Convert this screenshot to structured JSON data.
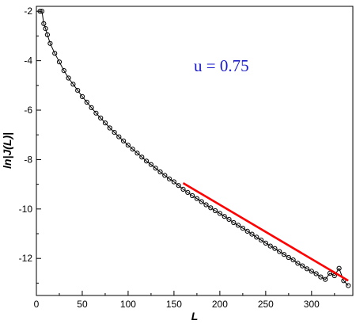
{
  "chart_data": {
    "type": "scatter",
    "title": "",
    "xlabel": "L",
    "ylabel": "ln|J(L)|",
    "xlim": [
      0,
      345
    ],
    "ylim": [
      -13.5,
      -1.8
    ],
    "xticks": [
      0,
      50,
      100,
      150,
      200,
      250,
      300
    ],
    "yticks": [
      -2,
      -4,
      -6,
      -8,
      -10,
      -12
    ],
    "grid": false,
    "legend": "none",
    "annotation": {
      "text": "u = 0.75",
      "color": "#1a1acc"
    },
    "series": [
      {
        "kind": "markers-with-line",
        "color": "#000000",
        "marker": "open-circle",
        "x": [
          4,
          6,
          8,
          10,
          12,
          15,
          20,
          25,
          30,
          35,
          40,
          45,
          50,
          55,
          60,
          65,
          70,
          75,
          80,
          85,
          90,
          95,
          100,
          105,
          110,
          115,
          120,
          125,
          130,
          135,
          140,
          145,
          150,
          155,
          160,
          165,
          170,
          175,
          180,
          185,
          190,
          195,
          200,
          205,
          210,
          215,
          220,
          225,
          230,
          235,
          240,
          245,
          250,
          255,
          260,
          265,
          270,
          275,
          280,
          285,
          290,
          295,
          300,
          305,
          310,
          315,
          320,
          325,
          330,
          335,
          340
        ],
        "y": [
          -2.0,
          -2.0,
          -2.5,
          -2.7,
          -2.95,
          -3.3,
          -3.7,
          -4.05,
          -4.4,
          -4.7,
          -4.95,
          -5.2,
          -5.45,
          -5.68,
          -5.9,
          -6.12,
          -6.32,
          -6.52,
          -6.72,
          -6.9,
          -7.08,
          -7.25,
          -7.42,
          -7.58,
          -7.74,
          -7.9,
          -8.06,
          -8.2,
          -8.35,
          -8.5,
          -8.64,
          -8.78,
          -8.9,
          -9.05,
          -9.2,
          -9.33,
          -9.46,
          -9.58,
          -9.7,
          -9.83,
          -9.95,
          -10.07,
          -10.18,
          -10.3,
          -10.42,
          -10.55,
          -10.66,
          -10.78,
          -10.9,
          -11.02,
          -11.14,
          -11.26,
          -11.38,
          -11.5,
          -11.6,
          -11.72,
          -11.84,
          -11.96,
          -12.06,
          -12.2,
          -12.3,
          -12.42,
          -12.52,
          -12.62,
          -12.75,
          -12.85,
          -12.6,
          -12.7,
          -12.4,
          -12.9,
          -13.1
        ]
      },
      {
        "kind": "fit-line",
        "color": "#ff0000",
        "x": [
          160,
          340
        ],
        "y": [
          -8.95,
          -12.9
        ]
      }
    ]
  }
}
